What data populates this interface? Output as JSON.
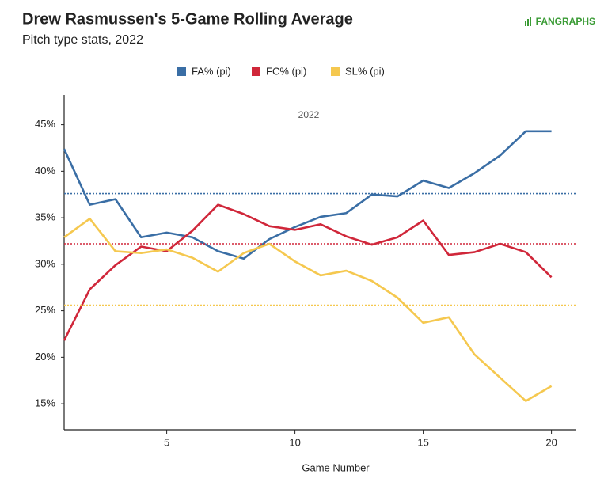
{
  "chart_data": {
    "type": "line",
    "title": "Drew Rasmussen's 5-Game Rolling Average",
    "subtitle": "Pitch type stats, 2022",
    "logo": "FANGRAPHS",
    "annotation": "2022",
    "x_label": "Game Number",
    "legend": "top",
    "grid": false,
    "x": [
      1,
      2,
      3,
      4,
      5,
      6,
      7,
      8,
      9,
      10,
      11,
      12,
      13,
      14,
      15,
      16,
      17,
      18,
      19,
      20
    ],
    "xlim": [
      1,
      21
    ],
    "xticks": [
      5,
      10,
      15,
      20
    ],
    "ylim": [
      12.2,
      48.2
    ],
    "yticks": [
      {
        "value": 15,
        "label": "15%"
      },
      {
        "value": 20,
        "label": "20%"
      },
      {
        "value": 25,
        "label": "25%"
      },
      {
        "value": 30,
        "label": "30%"
      },
      {
        "value": 35,
        "label": "35%"
      },
      {
        "value": 40,
        "label": "40%"
      },
      {
        "value": 45,
        "label": "45%"
      }
    ],
    "series": [
      {
        "name": "FA% (pi)",
        "color": "#3a6ea5",
        "mean": 37.6,
        "values": [
          42.4,
          36.4,
          37.0,
          32.9,
          33.4,
          32.9,
          31.4,
          30.6,
          32.7,
          34.0,
          35.1,
          35.5,
          37.5,
          37.3,
          39.0,
          38.2,
          39.8,
          41.7,
          44.3,
          44.3
        ]
      },
      {
        "name": "FC% (pi)",
        "color": "#d0273a",
        "mean": 32.2,
        "values": [
          21.8,
          27.3,
          29.9,
          31.9,
          31.4,
          33.6,
          36.4,
          35.4,
          34.1,
          33.7,
          34.3,
          33.0,
          32.1,
          32.9,
          34.7,
          31.0,
          31.3,
          32.2,
          31.3,
          28.6
        ]
      },
      {
        "name": "SL% (pi)",
        "color": "#f5c84f",
        "mean": 25.6,
        "values": [
          32.9,
          34.9,
          31.4,
          31.2,
          31.6,
          30.7,
          29.2,
          31.2,
          32.2,
          30.3,
          28.8,
          29.3,
          28.2,
          26.4,
          23.7,
          24.3,
          20.3,
          17.8,
          15.3,
          16.9
        ]
      }
    ]
  }
}
